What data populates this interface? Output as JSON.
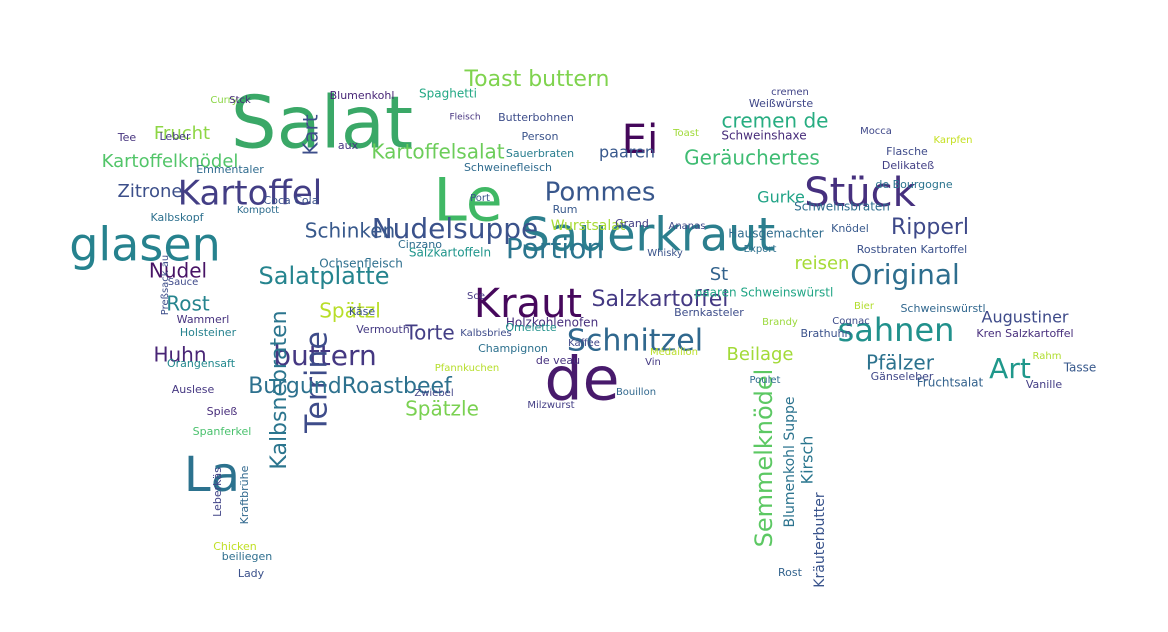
{
  "palette": {
    "purple": "#440154",
    "indigo": "#3b528b",
    "blue": "#31688e",
    "teal": "#21908c",
    "green": "#35b779",
    "lightgreen": "#5ec962",
    "yellow": "#b5de2b"
  },
  "words": [
    {
      "text": "Salat",
      "color": "#3aa867"
    },
    {
      "text": "Le",
      "color": "#40b865"
    },
    {
      "text": "de",
      "color": "#481a6c"
    },
    {
      "text": "Kraut",
      "color": "#46085c"
    },
    {
      "text": "Sauerkraut",
      "color": "#2c7f8e"
    },
    {
      "text": "Ei",
      "color": "#44075a"
    },
    {
      "text": "Kartoffel",
      "color": "#433e85"
    },
    {
      "text": "glasen",
      "color": "#26828e"
    },
    {
      "text": "Stück",
      "color": "#46307e"
    },
    {
      "text": "La",
      "color": "#2c728e"
    },
    {
      "text": "Schnitzel",
      "color": "#30688e"
    },
    {
      "text": "sahnen",
      "color": "#21918c"
    },
    {
      "text": "Nudelsuppe",
      "color": "#3b528b"
    },
    {
      "text": "Pommes",
      "color": "#38578c"
    },
    {
      "text": "Kartoffelsalat",
      "color": "#6ccd5a"
    },
    {
      "text": "Original",
      "color": "#2e6e8e"
    },
    {
      "text": "Portion",
      "color": "#2b758e"
    },
    {
      "text": "Salatplatte",
      "color": "#25848e"
    },
    {
      "text": "Toast buttern",
      "color": "#7fd34e"
    },
    {
      "text": "buttern",
      "color": "#453882"
    },
    {
      "text": "Art",
      "color": "#1f988b"
    },
    {
      "text": "Terrine",
      "color": "#3e4c8a"
    },
    {
      "text": "BurgundRoastbeef",
      "color": "#2d718e"
    },
    {
      "text": "Semmelknödel",
      "color": "#5cc863"
    },
    {
      "text": "Kartoffelknödel",
      "color": "#52c569"
    },
    {
      "text": "Geräuchertes",
      "color": "#3fbc73"
    },
    {
      "text": "cremen de",
      "color": "#27ad81"
    },
    {
      "text": "Kalbsnebraten",
      "color": "#2b758e"
    },
    {
      "text": "Salzkartoffel",
      "color": "#443983"
    },
    {
      "text": "Spätzl",
      "color": "#b8de29"
    },
    {
      "text": "Spätzle",
      "color": "#7ad151"
    },
    {
      "text": "Zitrone",
      "color": "#3c4f8a"
    },
    {
      "text": "Ripperl",
      "color": "#3e4989"
    },
    {
      "text": "Schinken",
      "color": "#38598c"
    },
    {
      "text": "Huhn",
      "color": "#482475"
    },
    {
      "text": "Nudel",
      "color": "#471365"
    },
    {
      "text": "Rost",
      "color": "#25848e"
    },
    {
      "text": "Torte",
      "color": "#433e85"
    },
    {
      "text": "Frucht",
      "color": "#8ed645"
    },
    {
      "text": "Kart",
      "color": "#3d4e8a"
    },
    {
      "text": "paaren",
      "color": "#38588c"
    },
    {
      "text": "Gurke",
      "color": "#20a386"
    },
    {
      "text": "Beilage",
      "color": "#a2da37"
    },
    {
      "text": "Pfälzer",
      "color": "#2c728e"
    },
    {
      "text": "reisen",
      "color": "#a5db36"
    },
    {
      "text": "St",
      "color": "#33638d"
    },
    {
      "text": "Augustiner",
      "color": "#3e4a89"
    },
    {
      "text": "Kirsch",
      "color": "#2a768e"
    },
    {
      "text": "Kräuterbutter",
      "color": "#3a548c"
    },
    {
      "text": "Blumenkohl Suppe",
      "color": "#2c738e"
    },
    {
      "text": "Spaghetti",
      "color": "#22a884"
    },
    {
      "text": "Blumenkohl",
      "color": "#482677"
    },
    {
      "text": "Butterbohnen",
      "color": "#3d4d8a"
    },
    {
      "text": "Schweinshaxe",
      "color": "#472c7a"
    },
    {
      "text": "Weißwürste",
      "color": "#3f4788"
    },
    {
      "text": "Person",
      "color": "#3a538b"
    },
    {
      "text": "Fleisch",
      "color": "#46337f"
    },
    {
      "text": "Sauerbraten",
      "color": "#287d8e"
    },
    {
      "text": "Schweinefleisch",
      "color": "#2f6b8e"
    },
    {
      "text": "Kalbskopf",
      "color": "#2d708e"
    },
    {
      "text": "Ochsenfleisch",
      "color": "#2e6f8e"
    },
    {
      "text": "Salzkartoffeln",
      "color": "#1f958b"
    },
    {
      "text": "Wurstsalat",
      "color": "#a8db34"
    },
    {
      "text": "Knödel",
      "color": "#38598c"
    },
    {
      "text": "Schweinsbraten",
      "color": "#2e6d8e"
    },
    {
      "text": "Hausgemachter",
      "color": "#2f6c8e"
    },
    {
      "text": "Rostbraten Kartoffel",
      "color": "#3b518b"
    },
    {
      "text": "de Bourgogne",
      "color": "#2b748e"
    },
    {
      "text": "Delikateß",
      "color": "#423f85"
    },
    {
      "text": "Mocca",
      "color": "#3f4889"
    },
    {
      "text": "Flasche",
      "color": "#3e4a89"
    },
    {
      "text": "paaren Schweinswürstl",
      "color": "#21a585"
    },
    {
      "text": "Schweinswürstl",
      "color": "#31678e"
    },
    {
      "text": "Kren Salzkartoffel",
      "color": "#472e7c"
    },
    {
      "text": "Fruchtsalat",
      "color": "#33628d"
    },
    {
      "text": "Vanille",
      "color": "#433d84"
    },
    {
      "text": "Tasse",
      "color": "#38598c"
    },
    {
      "text": "Rahm",
      "color": "#b0dd2f"
    },
    {
      "text": "Gänseleber",
      "color": "#3f4788"
    },
    {
      "text": "Brathuhn",
      "color": "#3b528b"
    },
    {
      "text": "Cognac",
      "color": "#3e4c8a"
    },
    {
      "text": "Bier",
      "color": "#b2dd2d"
    },
    {
      "text": "Grand",
      "color": "#423f85"
    },
    {
      "text": "Ananas",
      "color": "#3e4989"
    },
    {
      "text": "Rum",
      "color": "#38598c"
    },
    {
      "text": "Whisky",
      "color": "#3a538b"
    },
    {
      "text": "Export",
      "color": "#2d708e"
    },
    {
      "text": "Brandy",
      "color": "#9bd93c"
    },
    {
      "text": "Bernkasteler",
      "color": "#3d4d8a"
    },
    {
      "text": "Holzkohlenofen",
      "color": "#472f7d"
    },
    {
      "text": "Kaffee",
      "color": "#3f4788"
    },
    {
      "text": "Vin",
      "color": "#443983"
    },
    {
      "text": "de veau",
      "color": "#46307e"
    },
    {
      "text": "Omelette",
      "color": "#20928c"
    },
    {
      "text": "Champignon",
      "color": "#2d718e"
    },
    {
      "text": "Bouillon",
      "color": "#31688e"
    },
    {
      "text": "Milzwurst",
      "color": "#433e85"
    },
    {
      "text": "Zwiebel",
      "color": "#414487"
    },
    {
      "text": "Käse",
      "color": "#3b518b"
    },
    {
      "text": "Vermouth",
      "color": "#443a83"
    },
    {
      "text": "Cinzano",
      "color": "#2f6c8e"
    },
    {
      "text": "Preßsack au",
      "color": "#3d4e8a"
    },
    {
      "text": "Sauce",
      "color": "#3e4989"
    },
    {
      "text": "Wammerl",
      "color": "#46327e"
    },
    {
      "text": "Holsteiner",
      "color": "#26828e"
    },
    {
      "text": "Orangensaft",
      "color": "#23898e"
    },
    {
      "text": "Auslese",
      "color": "#453781"
    },
    {
      "text": "Spieß",
      "color": "#472c7a"
    },
    {
      "text": "Spanferkel",
      "color": "#4ac16d"
    },
    {
      "text": "Leberkäs",
      "color": "#414487"
    },
    {
      "text": "Kraftbrühe",
      "color": "#31688e"
    },
    {
      "text": "Chicken",
      "color": "#c0df25"
    },
    {
      "text": "beiliegen",
      "color": "#2e6e8e"
    },
    {
      "text": "Lady",
      "color": "#3b518b"
    },
    {
      "text": "Emmentaler",
      "color": "#2f6b8e"
    },
    {
      "text": "Curry",
      "color": "#8bd646"
    },
    {
      "text": "Stck",
      "color": "#472d7b"
    },
    {
      "text": "Leber",
      "color": "#443b84"
    },
    {
      "text": "Tee",
      "color": "#46337e"
    },
    {
      "text": "Coca Cola",
      "color": "#3b528b"
    },
    {
      "text": "aux",
      "color": "#453781"
    },
    {
      "text": "Sce",
      "color": "#453882"
    },
    {
      "text": "Port",
      "color": "#3a548c"
    },
    {
      "text": "Kompott",
      "color": "#2e6d8e"
    },
    {
      "text": "Rost",
      "color": "#33638d"
    },
    {
      "text": "cremen",
      "color": "#414487"
    },
    {
      "text": "Toast",
      "color": "#a0da39"
    },
    {
      "text": "Karpfen",
      "color": "#c5e021"
    },
    {
      "text": "Médaillon",
      "color": "#bade28"
    },
    {
      "text": "Pfannkuchen",
      "color": "#b6de2b"
    },
    {
      "text": "Poulet",
      "color": "#2f6b8e"
    },
    {
      "text": "Kalbsbries",
      "color": "#3e4c8a"
    },
    {
      "text": "Currysauce",
      "color": "#2b748e"
    }
  ]
}
